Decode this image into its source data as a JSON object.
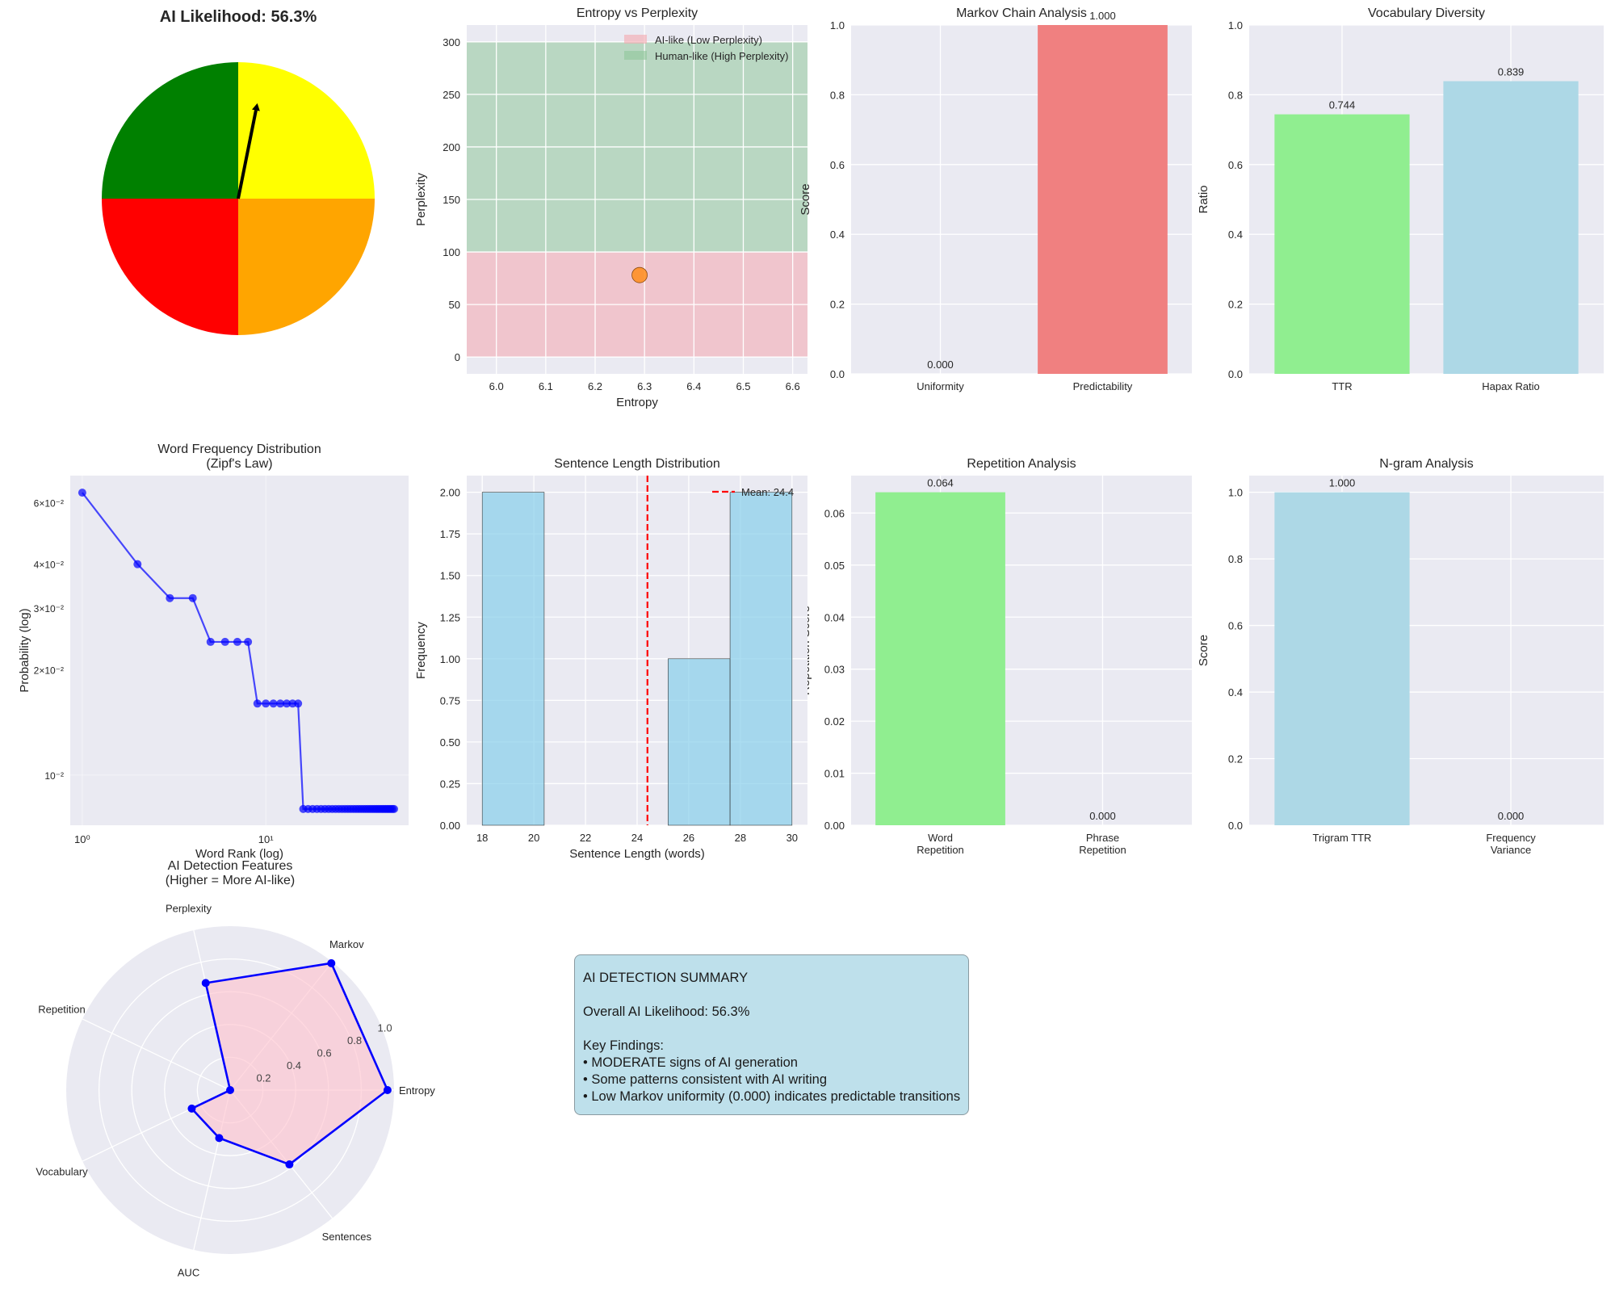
{
  "chart_data": [
    {
      "type": "pie",
      "title": "AI Likelihood: 56.3%",
      "likelihood_percent": 56.3,
      "segments": [
        {
          "from_deg": 0,
          "to_deg": 90,
          "color": "#FFFF00"
        },
        {
          "from_deg": 90,
          "to_deg": 180,
          "color": "#008000"
        },
        {
          "from_deg": 180,
          "to_deg": 270,
          "color": "#FF0000"
        },
        {
          "from_deg": 270,
          "to_deg": 360,
          "color": "#FFA500"
        }
      ],
      "needle_color": "#000000"
    },
    {
      "type": "scatter",
      "title": "Entropy vs Perplexity",
      "xlabel": "Entropy",
      "ylabel": "Perplexity",
      "xlim": [
        5.94,
        6.63
      ],
      "ylim": [
        -16,
        316
      ],
      "xticks": [
        6.0,
        6.1,
        6.2,
        6.3,
        6.4,
        6.5,
        6.6
      ],
      "xtick_labels": [
        "6.0",
        "6.1",
        "6.2",
        "6.3",
        "6.4",
        "6.5",
        "6.6"
      ],
      "yticks": [
        0,
        50,
        100,
        150,
        200,
        250,
        300
      ],
      "ytick_labels": [
        "0",
        "50",
        "100",
        "150",
        "200",
        "250",
        "300"
      ],
      "bands": [
        {
          "name": "AI-like (Low Perplexity)",
          "from": 0,
          "to": 100,
          "color": "#F4A6AE"
        },
        {
          "name": "Human-like (High Perplexity)",
          "from": 100,
          "to": 300,
          "color": "#8FC79A"
        }
      ],
      "points": [
        {
          "x": 6.29,
          "y": 78,
          "color": "#FF8C1A"
        }
      ],
      "grid": true,
      "legend": "top-right"
    },
    {
      "type": "bar",
      "title": "Markov Chain Analysis",
      "ylabel": "Score",
      "categories": [
        [
          "Uniformity"
        ],
        [
          "Predictability"
        ]
      ],
      "values": [
        0.0,
        1.0
      ],
      "value_labels": [
        "0.000",
        "1.000"
      ],
      "colors": [
        "#F08080",
        "#F08080"
      ],
      "ylim": [
        0,
        1
      ],
      "yticks": [
        0,
        0.2,
        0.4,
        0.6,
        0.8,
        1.0
      ],
      "ytick_labels": [
        "0.0",
        "0.2",
        "0.4",
        "0.6",
        "0.8",
        "1.0"
      ],
      "grid": true
    },
    {
      "type": "bar",
      "title": "Vocabulary Diversity",
      "ylabel": "Ratio",
      "categories": [
        [
          "TTR"
        ],
        [
          "Hapax Ratio"
        ]
      ],
      "values": [
        0.744,
        0.839
      ],
      "value_labels": [
        "0.744",
        "0.839"
      ],
      "colors": [
        "#90EE90",
        "#ADD8E6"
      ],
      "ylim": [
        0,
        1
      ],
      "yticks": [
        0,
        0.2,
        0.4,
        0.6,
        0.8,
        1.0
      ],
      "ytick_labels": [
        "0.0",
        "0.2",
        "0.4",
        "0.6",
        "0.8",
        "1.0"
      ],
      "grid": true
    },
    {
      "type": "line",
      "title_lines": [
        "Word Frequency Distribution",
        "(Zipf's Law)"
      ],
      "xlabel": "Word Rank (log)",
      "ylabel": "Probability (log)",
      "xscale": "log",
      "yscale": "log",
      "xlim": [
        0.86,
        60
      ],
      "ylim": [
        0.00719,
        0.0716
      ],
      "xticks": [
        1,
        10
      ],
      "xtick_labels": [
        "10⁰",
        "10¹"
      ],
      "yticks": [
        0.06,
        0.04,
        0.03,
        0.02,
        0.01
      ],
      "ytick_labels": [
        "6×10⁻²",
        "4×10⁻²",
        "3×10⁻²",
        "2×10⁻²",
        "10⁻²"
      ],
      "color": "#0000FF",
      "x": [
        1,
        2,
        3,
        4,
        5,
        6,
        7,
        8,
        9,
        10,
        11,
        12,
        13,
        14,
        15,
        16,
        17,
        18,
        19,
        20,
        21,
        22,
        23,
        24,
        25,
        26,
        27,
        28,
        29,
        30,
        31,
        32,
        33,
        34,
        35,
        36,
        37,
        38,
        39,
        40,
        41,
        42,
        43,
        44,
        45,
        46,
        47,
        48,
        49,
        50
      ],
      "y": [
        0.064,
        0.04,
        0.032,
        0.032,
        0.024,
        0.024,
        0.024,
        0.024,
        0.016,
        0.016,
        0.016,
        0.016,
        0.016,
        0.016,
        0.016,
        0.008,
        0.008,
        0.008,
        0.008,
        0.008,
        0.008,
        0.008,
        0.008,
        0.008,
        0.008,
        0.008,
        0.008,
        0.008,
        0.008,
        0.008,
        0.008,
        0.008,
        0.008,
        0.008,
        0.008,
        0.008,
        0.008,
        0.008,
        0.008,
        0.008,
        0.008,
        0.008,
        0.008,
        0.008,
        0.008,
        0.008,
        0.008,
        0.008,
        0.008,
        0.008
      ],
      "grid": true
    },
    {
      "type": "bar",
      "title": "Sentence Length Distribution",
      "xlabel": "Sentence Length (words)",
      "ylabel": "Frequency",
      "bin_edges": [
        18,
        20.4,
        22.8,
        25.2,
        27.6,
        30
      ],
      "counts": [
        2,
        0,
        0,
        1,
        2
      ],
      "color": "#87CEEB",
      "mean": 24.4,
      "mean_label": "Mean: 24.4",
      "mean_color": "#FF0000",
      "xlim": [
        17.4,
        30.6
      ],
      "ylim": [
        0,
        2.1
      ],
      "xticks": [
        18,
        20,
        22,
        24,
        26,
        28,
        30
      ],
      "xtick_labels": [
        "18",
        "20",
        "22",
        "24",
        "26",
        "28",
        "30"
      ],
      "yticks": [
        0,
        0.25,
        0.5,
        0.75,
        1.0,
        1.25,
        1.5,
        1.75,
        2.0
      ],
      "ytick_labels": [
        "0.00",
        "0.25",
        "0.50",
        "0.75",
        "1.00",
        "1.25",
        "1.50",
        "1.75",
        "2.00"
      ],
      "legend": "top-right",
      "grid": true
    },
    {
      "type": "bar",
      "title": "Repetition Analysis",
      "ylabel": "Repetition Score",
      "categories": [
        [
          "Word",
          "Repetition"
        ],
        [
          "Phrase",
          "Repetition"
        ]
      ],
      "values": [
        0.064,
        0.0
      ],
      "value_labels": [
        "0.064",
        "0.000"
      ],
      "colors": [
        "#90EE90",
        "#F08080"
      ],
      "ylim": [
        0,
        0.0672
      ],
      "yticks": [
        0,
        0.01,
        0.02,
        0.03,
        0.04,
        0.05,
        0.06
      ],
      "ytick_labels": [
        "0.00",
        "0.01",
        "0.02",
        "0.03",
        "0.04",
        "0.05",
        "0.06"
      ],
      "grid": true
    },
    {
      "type": "bar",
      "title": "N-gram Analysis",
      "ylabel": "Score",
      "categories": [
        [
          "Trigram TTR"
        ],
        [
          "Frequency",
          "Variance"
        ]
      ],
      "values": [
        1.0,
        0.0
      ],
      "value_labels": [
        "1.000",
        "0.000"
      ],
      "colors": [
        "#ADD8E6",
        "#F08080"
      ],
      "ylim": [
        0,
        1.05
      ],
      "yticks": [
        0,
        0.2,
        0.4,
        0.6,
        0.8,
        1.0
      ],
      "ytick_labels": [
        "0.0",
        "0.2",
        "0.4",
        "0.6",
        "0.8",
        "1.0"
      ],
      "grid": true
    },
    {
      "type": "radar",
      "title_lines": [
        "AI Detection Features",
        "(Higher = More AI-like)"
      ],
      "axes": [
        "Entropy",
        "Markov",
        "Perplexity",
        "Repetition",
        "Vocabulary",
        "AUC",
        "Sentences"
      ],
      "values": [
        0.96,
        0.99,
        0.67,
        0.0,
        0.26,
        0.3,
        0.58
      ],
      "rlim": [
        0,
        1
      ],
      "rticks": [
        0.2,
        0.4,
        0.6,
        0.8,
        1.0
      ],
      "rtick_labels": [
        "0.2",
        "0.4",
        "0.6",
        "0.8",
        "1.0"
      ],
      "line_color": "#0000FF",
      "fill_color": "#FFC0CB"
    }
  ],
  "summary": {
    "lines": [
      "AI DETECTION SUMMARY",
      "",
      "Overall AI Likelihood: 56.3%",
      "",
      "Key Findings:",
      "• MODERATE signs of AI generation",
      "• Some patterns consistent with AI writing",
      "• Low Markov uniformity (0.000) indicates predictable transitions"
    ],
    "background": "#BEE0EB"
  }
}
